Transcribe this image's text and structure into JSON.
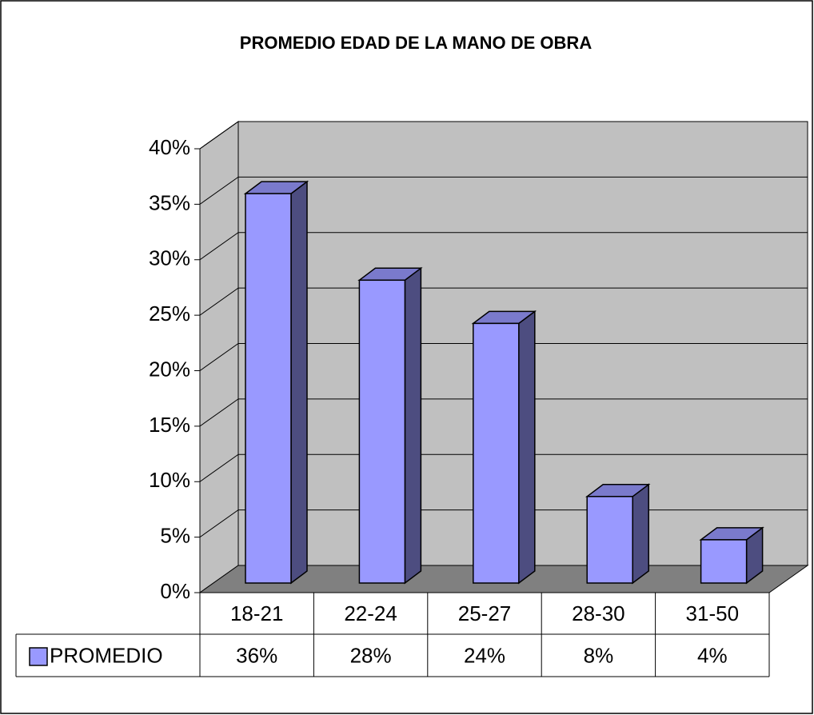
{
  "chart_data": {
    "type": "bar3d",
    "title": "PROMEDIO EDAD DE LA MANO DE OBRA",
    "categories": [
      "18-21",
      "22-24",
      "25-27",
      "28-30",
      "31-50"
    ],
    "series": [
      {
        "name": "PROMEDIO",
        "color": "#9999ff",
        "values": [
          36,
          28,
          24,
          8,
          4
        ],
        "value_labels": [
          "36%",
          "28%",
          "24%",
          "8%",
          "4%"
        ]
      }
    ],
    "ylim": [
      0,
      40
    ],
    "yticks": [
      {
        "value": 0,
        "label": "0%"
      },
      {
        "value": 5,
        "label": "5%"
      },
      {
        "value": 10,
        "label": "10%"
      },
      {
        "value": 15,
        "label": "15%"
      },
      {
        "value": 20,
        "label": "20%"
      },
      {
        "value": 25,
        "label": "25%"
      },
      {
        "value": 30,
        "label": "30%"
      },
      {
        "value": 35,
        "label": "35%"
      },
      {
        "value": 40,
        "label": "40%"
      }
    ],
    "grid": true
  }
}
